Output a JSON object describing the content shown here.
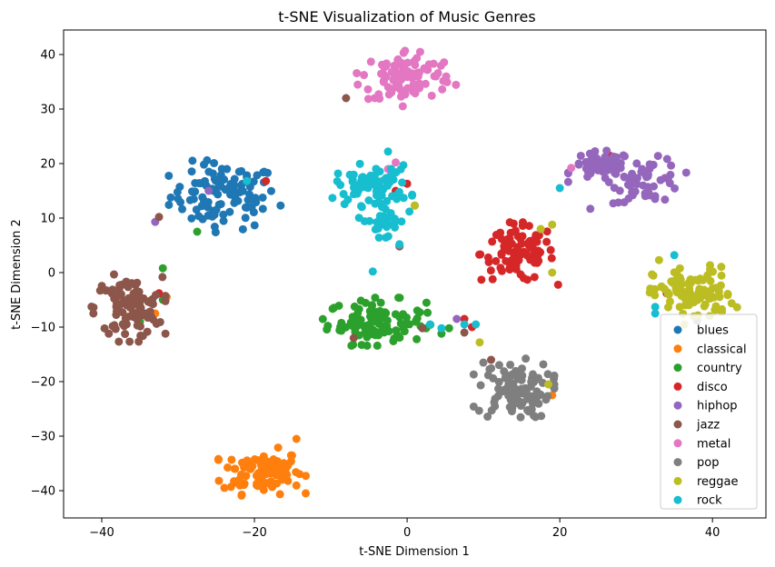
{
  "chart_data": {
    "type": "scatter",
    "title": "t-SNE Visualization of Music Genres",
    "xlabel": "t-SNE Dimension 1",
    "ylabel": "t-SNE Dimension 2",
    "xlim": [
      -45,
      47
    ],
    "ylim": [
      -45,
      44.5
    ],
    "xticks": [
      -40,
      -20,
      0,
      20,
      40
    ],
    "yticks": [
      -40,
      -30,
      -20,
      -10,
      0,
      10,
      20,
      30,
      40
    ],
    "grid": false,
    "legend_position": "lower-right",
    "series": [
      {
        "name": "blues",
        "color": "#1f77b4",
        "clusters": [
          {
            "cx": -24,
            "cy": 14,
            "sx": 3.5,
            "sy": 3.0,
            "n": 100
          }
        ],
        "outliers": [
          [
            -21,
            17.5
          ],
          [
            -22,
            18.5
          ],
          [
            -25,
            11.5
          ]
        ]
      },
      {
        "name": "classical",
        "color": "#ff7f0e",
        "clusters": [
          {
            "cx": -19,
            "cy": -36.5,
            "sx": 2.6,
            "sy": 2.0,
            "n": 100
          }
        ],
        "outliers": [
          [
            -31.5,
            -4.5
          ],
          [
            -33,
            -7.5
          ],
          [
            19,
            -22.5
          ],
          [
            -14.5,
            -30.5
          ]
        ]
      },
      {
        "name": "country",
        "color": "#2ca02c",
        "clusters": [
          {
            "cx": -4,
            "cy": -9,
            "sx": 3.2,
            "sy": 2.0,
            "n": 100
          }
        ],
        "outliers": [
          [
            -27.5,
            7.5
          ],
          [
            -32,
            0.8
          ],
          [
            -32,
            -5
          ],
          [
            -35,
            -9
          ],
          [
            5.5,
            -10.2
          ],
          [
            4.5,
            -11.2
          ],
          [
            2.5,
            -10.2
          ],
          [
            -0.5,
            -10.2
          ]
        ]
      },
      {
        "name": "disco",
        "color": "#d62728",
        "clusters": [
          {
            "cx": 14.5,
            "cy": 3.5,
            "sx": 2.4,
            "sy": 2.6,
            "n": 95
          }
        ],
        "outliers": [
          [
            -18.5,
            16.8
          ],
          [
            -1.5,
            15
          ],
          [
            0,
            16.3
          ],
          [
            8.5,
            -10
          ],
          [
            7.5,
            -8.5
          ],
          [
            26.5,
            21.5
          ],
          [
            -32.5,
            -3.8
          ],
          [
            34,
            -3.8
          ]
        ]
      },
      {
        "name": "hiphop",
        "color": "#9467bd",
        "clusters": [
          {
            "cx": 25.5,
            "cy": 19.5,
            "sx": 2.0,
            "sy": 1.3,
            "n": 55
          },
          {
            "cx": 31.5,
            "cy": 17,
            "sx": 2.3,
            "sy": 2.0,
            "n": 55
          }
        ],
        "outliers": [
          [
            -26,
            15
          ],
          [
            -33,
            9.3
          ],
          [
            24,
            11.7
          ],
          [
            27,
            12.7
          ],
          [
            6.5,
            -8.5
          ]
        ]
      },
      {
        "name": "jazz",
        "color": "#8c564b",
        "clusters": [
          {
            "cx": -36.5,
            "cy": -6.5,
            "sx": 2.2,
            "sy": 2.8,
            "n": 100
          }
        ],
        "outliers": [
          [
            -8,
            32
          ],
          [
            -7,
            -12
          ],
          [
            -1,
            4.8
          ],
          [
            2,
            -10.2
          ],
          [
            7.5,
            -11
          ],
          [
            11,
            -16
          ],
          [
            -32.5,
            10.2
          ]
        ]
      },
      {
        "name": "metal",
        "color": "#e377c2",
        "clusters": [
          {
            "cx": 0,
            "cy": 36,
            "sx": 3.0,
            "sy": 2.5,
            "n": 100
          }
        ],
        "outliers": [
          [
            -1.5,
            20.2
          ],
          [
            21.5,
            19.2
          ],
          [
            -2.5,
            19
          ]
        ]
      },
      {
        "name": "pop",
        "color": "#7f7f7f",
        "clusters": [
          {
            "cx": 14,
            "cy": -21.5,
            "sx": 2.4,
            "sy": 2.6,
            "n": 100
          }
        ],
        "outliers": [
          [
            38,
            -8.8
          ],
          [
            1,
            12.3
          ],
          [
            -1,
            5
          ]
        ]
      },
      {
        "name": "reggae",
        "color": "#bcbd22",
        "clusters": [
          {
            "cx": 37.5,
            "cy": -4,
            "sx": 2.6,
            "sy": 2.5,
            "n": 100
          }
        ],
        "outliers": [
          [
            19,
            8.8
          ],
          [
            19,
            0
          ],
          [
            17.5,
            8
          ],
          [
            18.5,
            -20.5
          ],
          [
            9.5,
            -12.8
          ],
          [
            1,
            12.3
          ],
          [
            33,
            2.3
          ]
        ]
      },
      {
        "name": "rock",
        "color": "#17becf",
        "clusters": [
          {
            "cx": -4.5,
            "cy": 16,
            "sx": 2.4,
            "sy": 1.8,
            "n": 70
          },
          {
            "cx": -3,
            "cy": 9.5,
            "sx": 1.5,
            "sy": 1.4,
            "n": 30
          }
        ],
        "outliers": [
          [
            -21,
            16.8
          ],
          [
            -2.5,
            22.2
          ],
          [
            -4.5,
            0.2
          ],
          [
            -1,
            5.2
          ],
          [
            20,
            15.5
          ],
          [
            3,
            -9.5
          ],
          [
            4.5,
            -10.2
          ],
          [
            7.5,
            -9.5
          ],
          [
            9,
            -9.5
          ],
          [
            35,
            3.2
          ],
          [
            32.5,
            -7.5
          ],
          [
            32.5,
            -6.3
          ]
        ]
      }
    ]
  }
}
